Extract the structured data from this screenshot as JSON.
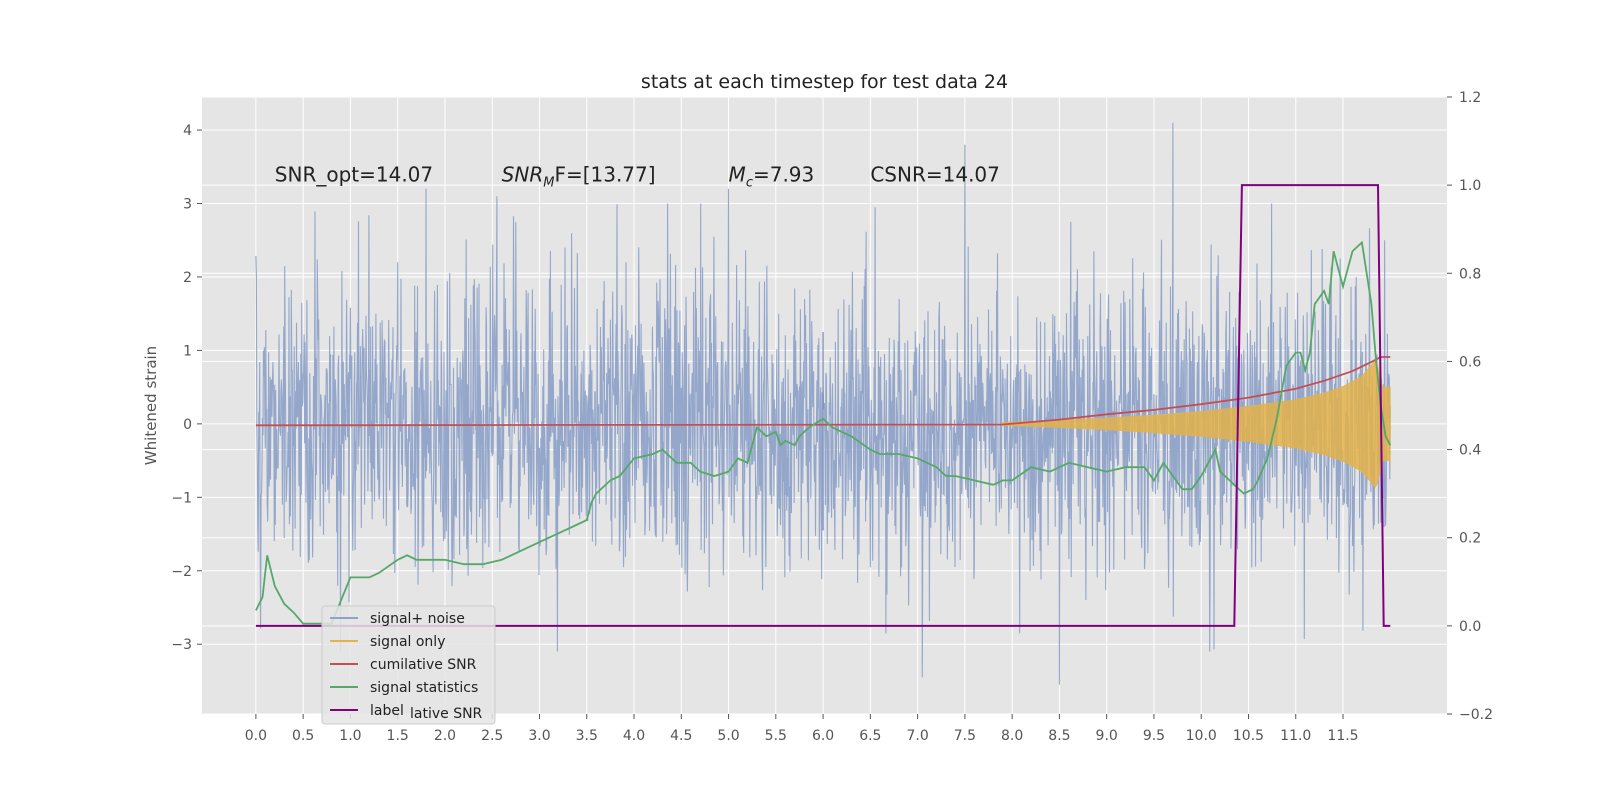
{
  "chart_data": {
    "type": "line",
    "title": "stats at each timestep for test data 24",
    "ylabel": "Whitened strain",
    "xlim": [
      -0.57,
      12.6
    ],
    "ylim": [
      -3.95,
      4.45
    ],
    "y2lim": [
      -0.2,
      1.2
    ],
    "x_ticks": [
      0.0,
      0.5,
      1.0,
      1.5,
      2.0,
      2.5,
      3.0,
      3.5,
      4.0,
      4.5,
      5.0,
      5.5,
      6.0,
      6.5,
      7.0,
      7.5,
      8.0,
      8.5,
      9.0,
      9.5,
      10.0,
      10.5,
      11.0,
      11.5
    ],
    "x_tick_labels": [
      "0.0",
      "0.5",
      "1.0",
      "1.5",
      "2.0",
      "2.5",
      "3.0",
      "3.5",
      "4.0",
      "4.5",
      "5.0",
      "5.5",
      "6.0",
      "6.5",
      "7.0",
      "7.5",
      "8.0",
      "8.5",
      "9.0",
      "9.5",
      "10.0",
      "10.5",
      "11.0",
      "11.5"
    ],
    "y_ticks": [
      -3,
      -2,
      -1,
      0,
      1,
      2,
      3,
      4
    ],
    "y_tick_labels": [
      "−3",
      "−2",
      "−1",
      "0",
      "1",
      "2",
      "3",
      "4"
    ],
    "y2_ticks": [
      -0.2,
      0.0,
      0.2,
      0.4,
      0.6,
      0.8,
      1.0,
      1.2
    ],
    "y2_tick_labels": [
      "−0.2",
      "0.0",
      "0.2",
      "0.4",
      "0.6",
      "0.8",
      "1.0",
      "1.2"
    ],
    "grid": true,
    "legend_position": "lower-left",
    "annotations": [
      {
        "prefix": "SNR_opt=14.07",
        "x": 0.2,
        "y": 3.3
      },
      {
        "prefix": "SNR",
        "sub": "M",
        "suffix": "F=[13.77]",
        "italic": true,
        "x": 2.6,
        "y": 3.3
      },
      {
        "prefix": "M",
        "sub": "c",
        "suffix": "=7.93",
        "italic_prefix": true,
        "x": 5.0,
        "y": 3.3
      },
      {
        "prefix": "CSNR=14.07",
        "x": 6.5,
        "y": 3.3
      }
    ],
    "series": [
      {
        "name": "signal+ noise",
        "axis": "left",
        "color": "#8fa3c9",
        "description": "whitened noise, approx. Gaussian, sd ~1, max ~4.1, min ~-3.55",
        "x_range": [
          0.0,
          12.0
        ],
        "peaks": [
          {
            "x": 1.8,
            "y": 3.2
          },
          {
            "x": 2.55,
            "y": 3.1
          },
          {
            "x": 5.0,
            "y": 3.2
          },
          {
            "x": 7.5,
            "y": 3.8
          },
          {
            "x": 9.7,
            "y": 4.1
          },
          {
            "x": 8.5,
            "y": -3.55
          },
          {
            "x": 7.05,
            "y": -3.45
          }
        ]
      },
      {
        "name": "signal only",
        "axis": "left",
        "color": "#e3b24a",
        "description": "chirp signal growing in amplitude, visible from ~7.9 s, peak amplitude ~0.9 at ~11.85 s, ends at 12.0",
        "envelope": {
          "x": [
            7.9,
            8.5,
            9.0,
            9.5,
            10.0,
            10.5,
            11.0,
            11.3,
            11.5,
            11.7,
            11.85,
            11.92
          ],
          "y": [
            0.02,
            0.05,
            0.08,
            0.12,
            0.17,
            0.24,
            0.33,
            0.42,
            0.51,
            0.65,
            0.88,
            0.5
          ]
        }
      },
      {
        "name": "cumilative SNR",
        "axis": "right",
        "color": "#c44e52",
        "x": [
          0.0,
          7.9,
          8.5,
          9.0,
          9.5,
          10.0,
          10.5,
          11.0,
          11.3,
          11.6,
          11.8,
          11.9,
          12.0
        ],
        "y": [
          0.455,
          0.457,
          0.468,
          0.48,
          0.49,
          0.503,
          0.518,
          0.538,
          0.556,
          0.578,
          0.599,
          0.61,
          0.61
        ]
      },
      {
        "name": "signal statistics",
        "axis": "right",
        "color": "#55a868",
        "x": [
          0.0,
          0.07,
          0.12,
          0.2,
          0.3,
          0.4,
          0.5,
          0.6,
          0.8,
          1.0,
          1.1,
          1.2,
          1.3,
          1.5,
          1.6,
          1.7,
          1.8,
          2.0,
          2.2,
          2.4,
          2.6,
          2.8,
          3.0,
          3.2,
          3.4,
          3.5,
          3.55,
          3.6,
          3.75,
          3.85,
          4.0,
          4.2,
          4.3,
          4.45,
          4.6,
          4.7,
          4.85,
          5.0,
          5.1,
          5.2,
          5.3,
          5.4,
          5.5,
          5.55,
          5.6,
          5.7,
          5.75,
          5.85,
          6.0,
          6.1,
          6.2,
          6.3,
          6.5,
          6.6,
          6.8,
          7.0,
          7.2,
          7.3,
          7.4,
          7.6,
          7.8,
          7.9,
          8.0,
          8.2,
          8.4,
          8.6,
          8.8,
          9.0,
          9.2,
          9.4,
          9.5,
          9.6,
          9.7,
          9.8,
          9.9,
          10.0,
          10.1,
          10.15,
          10.2,
          10.3,
          10.35,
          10.45,
          10.55,
          10.6,
          10.7,
          10.8,
          10.9,
          11.0,
          11.05,
          11.1,
          11.15,
          11.2,
          11.3,
          11.35,
          11.4,
          11.5,
          11.6,
          11.7,
          11.8,
          11.85,
          11.9,
          11.95,
          12.0
        ],
        "y": [
          0.035,
          0.065,
          0.16,
          0.09,
          0.05,
          0.03,
          0.005,
          0.005,
          0.005,
          0.11,
          0.11,
          0.11,
          0.12,
          0.15,
          0.16,
          0.15,
          0.15,
          0.15,
          0.14,
          0.14,
          0.15,
          0.17,
          0.19,
          0.21,
          0.23,
          0.24,
          0.28,
          0.3,
          0.33,
          0.34,
          0.38,
          0.39,
          0.4,
          0.37,
          0.37,
          0.35,
          0.34,
          0.35,
          0.38,
          0.37,
          0.45,
          0.43,
          0.44,
          0.41,
          0.42,
          0.41,
          0.43,
          0.45,
          0.47,
          0.45,
          0.44,
          0.43,
          0.4,
          0.39,
          0.39,
          0.38,
          0.36,
          0.34,
          0.34,
          0.33,
          0.32,
          0.33,
          0.33,
          0.36,
          0.35,
          0.37,
          0.36,
          0.35,
          0.36,
          0.36,
          0.33,
          0.37,
          0.34,
          0.31,
          0.31,
          0.34,
          0.38,
          0.4,
          0.35,
          0.33,
          0.32,
          0.3,
          0.31,
          0.33,
          0.38,
          0.47,
          0.59,
          0.62,
          0.62,
          0.58,
          0.62,
          0.73,
          0.76,
          0.73,
          0.85,
          0.77,
          0.85,
          0.87,
          0.73,
          0.6,
          0.5,
          0.43,
          0.41
        ]
      },
      {
        "name": "label",
        "axis": "right",
        "color": "#800080",
        "x": [
          0.0,
          10.35,
          10.43,
          11.87,
          11.93,
          12.0
        ],
        "y": [
          0.0,
          0.0,
          1.0,
          1.0,
          0.0,
          0.0
        ]
      }
    ],
    "legend": [
      {
        "label": "signal+ noise",
        "color": "#8fa3c9"
      },
      {
        "label": "signal only",
        "color": "#e3b24a"
      },
      {
        "label": "cumilative SNR",
        "color": "#c44e52"
      },
      {
        "label": "signal statistics",
        "color": "#55a868"
      },
      {
        "label": "label",
        "color": "#800080"
      }
    ],
    "legend_ghost_text": "lative SNR",
    "colors": {
      "axes_bg": "#e5e5e5",
      "grid": "#ffffff",
      "tick": "#555555",
      "text": "#222222",
      "vertical_artifact": "#7a8fbf"
    }
  }
}
